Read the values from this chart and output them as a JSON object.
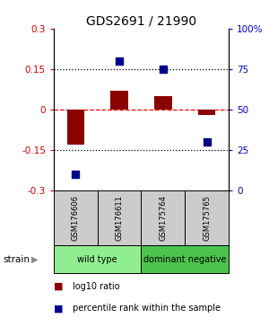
{
  "title": "GDS2691 / 21990",
  "samples": [
    "GSM176606",
    "GSM176611",
    "GSM175764",
    "GSM175765"
  ],
  "log10_ratio": [
    -0.13,
    0.07,
    0.05,
    -0.02
  ],
  "percentile_rank": [
    10,
    80,
    75,
    30
  ],
  "groups": [
    {
      "label": "wild type",
      "color": "#90EE90",
      "start": 0,
      "end": 2
    },
    {
      "label": "dominant negative",
      "color": "#4CC44C",
      "start": 2,
      "end": 4
    }
  ],
  "group_row_label": "strain",
  "ylim": [
    -0.3,
    0.3
  ],
  "yticks_left": [
    -0.3,
    -0.15,
    0,
    0.15,
    0.3
  ],
  "yticks_left_labels": [
    "-0.3",
    "-0.15",
    "0",
    "0.15",
    "0.3"
  ],
  "yticks_right_labels": [
    "0",
    "25",
    "50",
    "75",
    "100%"
  ],
  "hlines_dotted": [
    -0.15,
    0.15
  ],
  "hline_zero": 0,
  "bar_color": "#8B0000",
  "square_color": "#00008B",
  "left_tick_color": "#CC0000",
  "right_tick_color": "#0000CC",
  "legend_bar_label": "log10 ratio",
  "legend_square_label": "percentile rank within the sample",
  "sample_box_color": "#CCCCCC",
  "figsize": [
    3.0,
    3.54
  ],
  "dpi": 100
}
